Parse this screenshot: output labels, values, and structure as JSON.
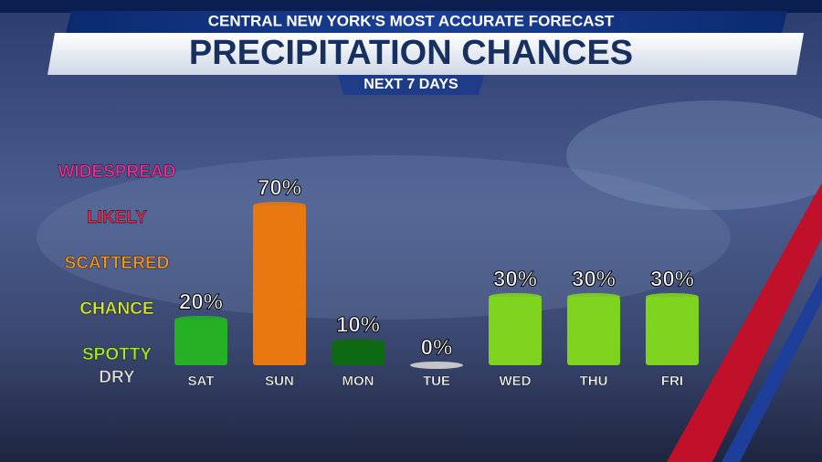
{
  "chart_data": {
    "type": "bar",
    "header": "CENTRAL NEW YORK'S MOST ACCURATE FORECAST",
    "title": "PRECIPITATION CHANCES",
    "subtitle": "NEXT 7 DAYS",
    "categories": [
      "SAT",
      "SUN",
      "MON",
      "TUE",
      "WED",
      "THU",
      "FRI"
    ],
    "values": [
      20,
      70,
      10,
      0,
      30,
      30,
      30
    ],
    "value_labels": [
      "20%",
      "70%",
      "10%",
      "0%",
      "30%",
      "30%",
      "30%"
    ],
    "colors": [
      "#25b025",
      "#e8780f",
      "#0e6a12",
      "#d4d4d4",
      "#7ed31e",
      "#7ed31e",
      "#7ed31e"
    ],
    "ylim": [
      0,
      100
    ],
    "yticks": [
      {
        "value": 0,
        "label": "DRY"
      },
      {
        "value": 10,
        "label": "SPOTTY"
      },
      {
        "value": 30,
        "label": "CHANCE"
      },
      {
        "value": 50,
        "label": "SCATTERED"
      },
      {
        "value": 70,
        "label": "LIKELY"
      },
      {
        "value": 90,
        "label": "WIDESPREAD"
      }
    ],
    "ytick_colors": [
      "#dddddd",
      "#a4ec2a",
      "#d9ec2a",
      "#f0952a",
      "#e2284e",
      "#e8309a"
    ]
  }
}
